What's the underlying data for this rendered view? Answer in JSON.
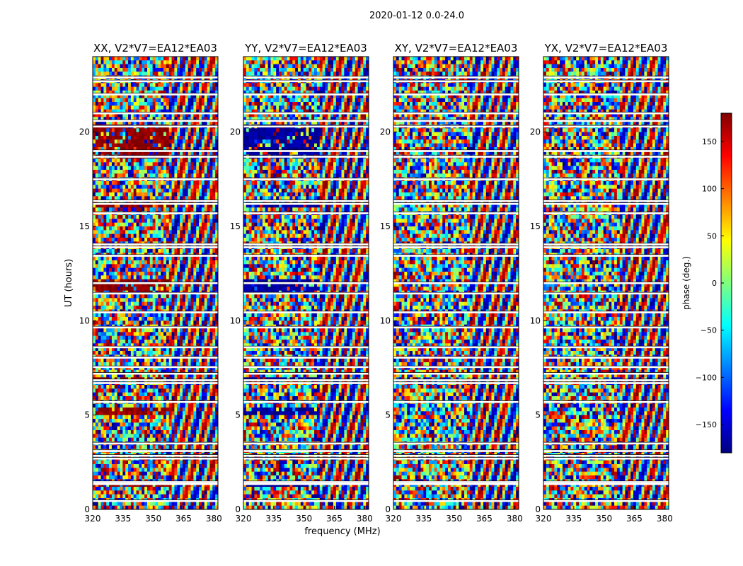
{
  "chart_data": {
    "type": "heatmap",
    "title": "2020-01-12 0.0-24.0",
    "xlabel": "frequency (MHz)",
    "ylabel": "UT (hours)",
    "xlim": [
      320,
      382
    ],
    "ylim": [
      0,
      24
    ],
    "x_ticks": [
      "320",
      "335",
      "350",
      "365",
      "380"
    ],
    "x_tick_values": [
      320,
      335,
      350,
      365,
      380
    ],
    "y_ticks": [
      "0",
      "5",
      "10",
      "15",
      "20"
    ],
    "y_tick_values": [
      0,
      5,
      10,
      15,
      20
    ],
    "panels": [
      {
        "title": "XX, V2*V7=EA12*EA03",
        "dominant_phase": 175
      },
      {
        "title": "YY, V2*V7=EA12*EA03",
        "dominant_phase": -170
      },
      {
        "title": "XY, V2*V7=EA12*EA03",
        "dominant_phase": null
      },
      {
        "title": "YX, V2*V7=EA12*EA03",
        "dominant_phase": null
      }
    ],
    "gaps_hours": [
      0.45,
      1.35,
      1.45,
      2.7,
      2.85,
      3.1,
      3.5,
      5.7,
      6.7,
      6.85,
      7.2,
      7.55,
      8.05,
      8.6,
      9.65,
      10.45,
      11.45,
      12.0,
      13.45,
      13.9,
      14.05,
      15.7,
      16.2,
      16.35,
      17.5,
      18.7,
      19.0,
      20.3,
      20.6,
      21.0,
      22.0,
      22.7,
      22.9
    ],
    "colorbar": {
      "label": "phase (deg.)",
      "range": [
        -180,
        180
      ],
      "ticks": [
        "150",
        "100",
        "50",
        "0",
        "−50",
        "−100",
        "−150"
      ],
      "tick_values": [
        150,
        100,
        50,
        0,
        -50,
        -100,
        -150
      ],
      "colormap": [
        "#00007f",
        "#0000ff",
        "#007fff",
        "#00ffff",
        "#7fff7f",
        "#ffff00",
        "#ff7f00",
        "#ff0000",
        "#7f0000"
      ]
    }
  }
}
